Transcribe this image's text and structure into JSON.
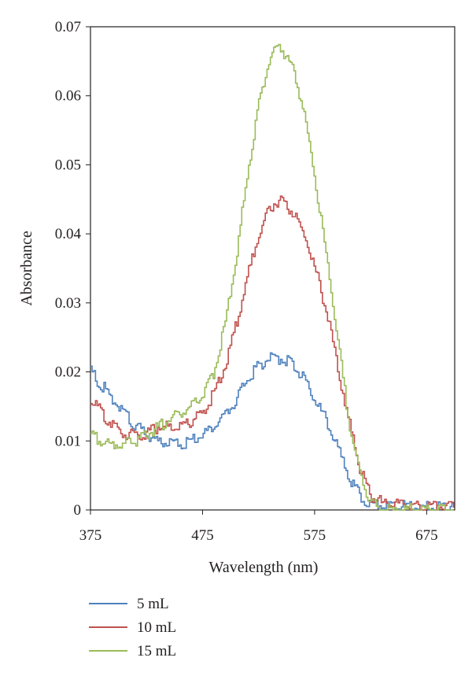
{
  "chart_data": {
    "type": "line",
    "xlabel": "Wavelength (nm)",
    "ylabel": "Absorbance",
    "xlim": [
      375,
      700
    ],
    "ylim": [
      0,
      0.07
    ],
    "xticks": [
      375,
      475,
      575,
      675
    ],
    "yticks": [
      0,
      0.01,
      0.02,
      0.03,
      0.04,
      0.05,
      0.06,
      0.07
    ],
    "ytick_labels": [
      "0",
      "0.01",
      "0.02",
      "0.03",
      "0.04",
      "0.05",
      "0.06",
      "0.07"
    ],
    "xtick_labels": [
      "375",
      "475",
      "575",
      "675"
    ],
    "grid": false,
    "legend_position": "bottom-left, below plot",
    "series": [
      {
        "name": "5 mL",
        "color": "#4f81bd",
        "x": [
          375,
          385,
          395,
          405,
          415,
          425,
          435,
          445,
          455,
          465,
          475,
          485,
          495,
          505,
          515,
          525,
          535,
          545,
          555,
          565,
          575,
          585,
          595,
          605,
          615,
          625,
          635,
          645,
          655,
          665,
          675,
          685,
          695,
          700
        ],
        "y": [
          0.02,
          0.018,
          0.016,
          0.014,
          0.012,
          0.011,
          0.01,
          0.0095,
          0.0095,
          0.01,
          0.011,
          0.012,
          0.014,
          0.016,
          0.019,
          0.021,
          0.022,
          0.022,
          0.021,
          0.019,
          0.016,
          0.013,
          0.009,
          0.005,
          0.002,
          0.001,
          0.0005,
          0.0005,
          0.0005,
          0.0005,
          0.0005,
          0.0005,
          0.0005,
          0.0005
        ]
      },
      {
        "name": "10 mL",
        "color": "#c0504d",
        "x": [
          375,
          385,
          395,
          405,
          415,
          425,
          435,
          445,
          455,
          465,
          475,
          485,
          495,
          505,
          515,
          525,
          535,
          545,
          555,
          565,
          575,
          585,
          595,
          605,
          615,
          625,
          635,
          645,
          655,
          665,
          675,
          685,
          695,
          700
        ],
        "y": [
          0.016,
          0.014,
          0.012,
          0.011,
          0.011,
          0.011,
          0.012,
          0.012,
          0.012,
          0.013,
          0.014,
          0.017,
          0.021,
          0.027,
          0.034,
          0.04,
          0.044,
          0.045,
          0.043,
          0.04,
          0.035,
          0.029,
          0.021,
          0.013,
          0.006,
          0.002,
          0.001,
          0.001,
          0.001,
          0.0005,
          0.0005,
          0.0005,
          0.0005,
          0.0005
        ]
      },
      {
        "name": "15 mL",
        "color": "#9bbb59",
        "x": [
          375,
          385,
          395,
          405,
          415,
          425,
          435,
          445,
          455,
          465,
          475,
          485,
          495,
          505,
          515,
          525,
          535,
          545,
          555,
          565,
          575,
          585,
          595,
          605,
          615,
          625,
          635,
          645,
          655,
          665,
          675,
          685,
          695,
          700
        ],
        "y": [
          0.011,
          0.01,
          0.0095,
          0.0095,
          0.01,
          0.011,
          0.012,
          0.013,
          0.014,
          0.015,
          0.017,
          0.02,
          0.027,
          0.037,
          0.049,
          0.059,
          0.066,
          0.067,
          0.064,
          0.058,
          0.048,
          0.037,
          0.025,
          0.013,
          0.005,
          0.001,
          0.0,
          0.0,
          0.0,
          0.0,
          0.0,
          0.0,
          0.0,
          0.0
        ]
      }
    ]
  }
}
